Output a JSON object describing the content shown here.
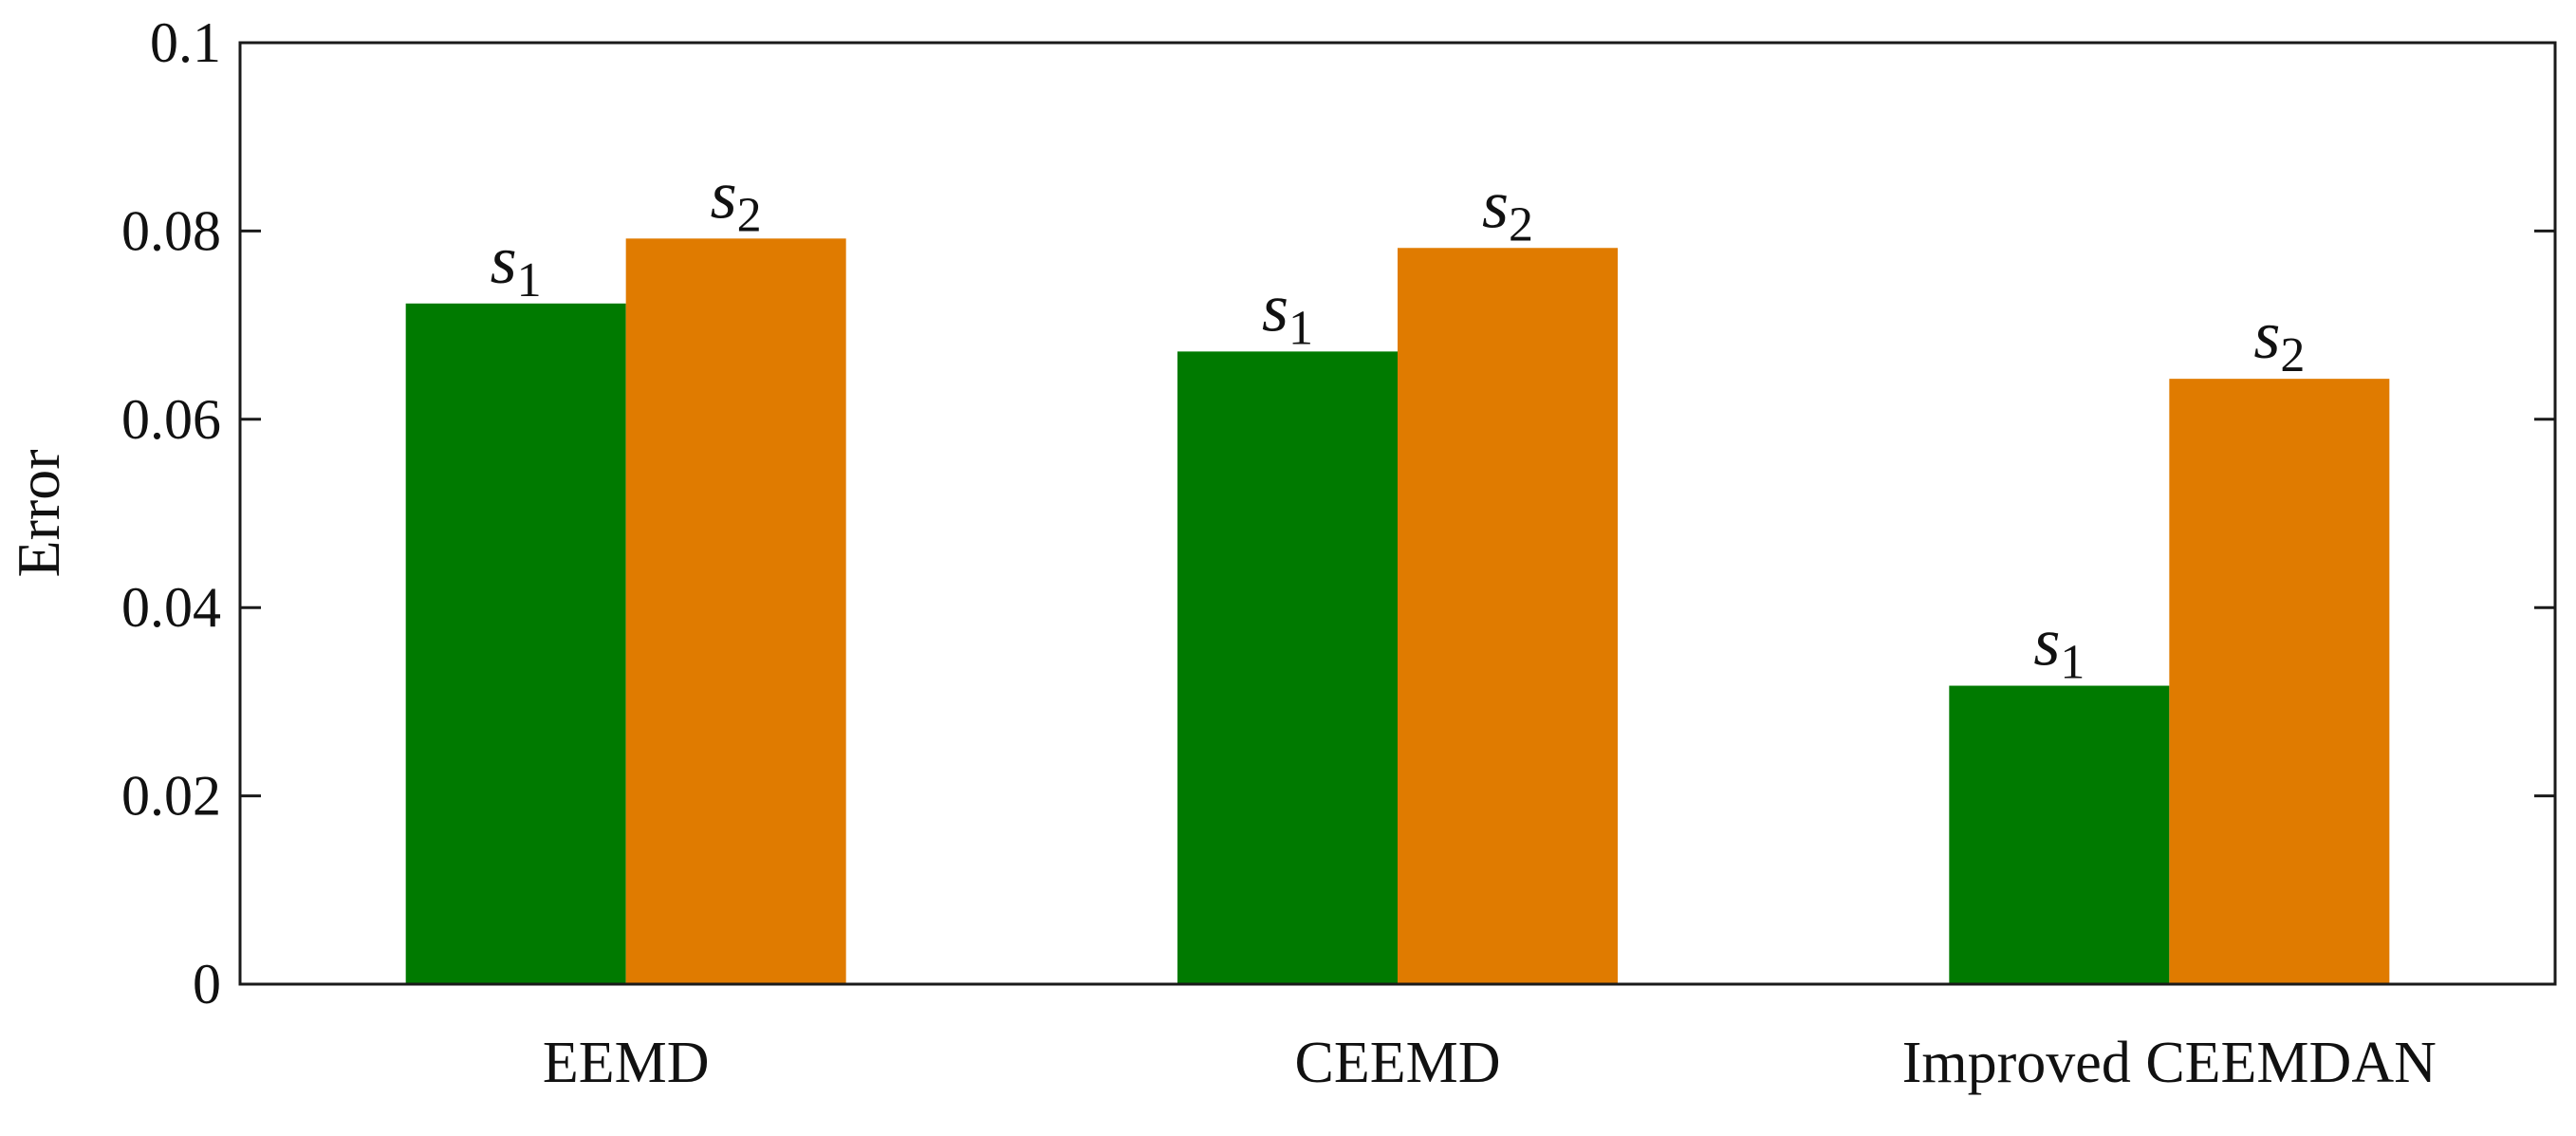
{
  "chart_data": {
    "type": "bar",
    "categories": [
      "EEMD",
      "CEEMD",
      "Improved CEEMDAN"
    ],
    "series": [
      {
        "label_base": "s",
        "label_sub": "1",
        "values": [
          0.0723,
          0.0672,
          0.0317
        ]
      },
      {
        "label_base": "s",
        "label_sub": "2",
        "values": [
          0.0792,
          0.0782,
          0.0643
        ]
      }
    ],
    "colors": [
      "#007A00",
      "#E07B00"
    ],
    "ylabel": "Error",
    "xlabel": "",
    "ylim": [
      0,
      0.1
    ],
    "yticks": [
      "0",
      "0.02",
      "0.04",
      "0.06",
      "0.08",
      "0.1"
    ],
    "grid": false,
    "legend": "none"
  }
}
